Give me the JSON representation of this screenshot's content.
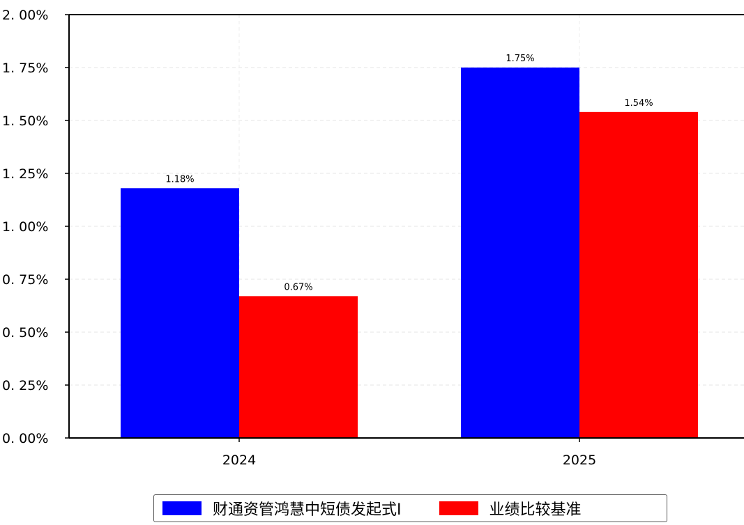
{
  "chart_data": {
    "type": "bar",
    "categories": [
      "2024",
      "2025"
    ],
    "series": [
      {
        "name": "财通资管鸿慧中短债发起式I",
        "values": [
          1.18,
          1.75
        ],
        "labels": [
          "1.18%",
          "1.75%"
        ],
        "color": "#0000ff"
      },
      {
        "name": "业绩比较基准",
        "values": [
          0.67,
          1.54
        ],
        "labels": [
          "0.67%",
          "1.54%"
        ],
        "color": "#ff0000"
      }
    ],
    "ylim": [
      0,
      2.0
    ],
    "yticks": [
      0,
      0.25,
      0.5,
      0.75,
      1.0,
      1.25,
      1.5,
      1.75,
      2.0
    ],
    "ytick_labels": [
      "0. 00%",
      "0. 25%",
      "0. 50%",
      "0. 75%",
      "1. 00%",
      "1. 25%",
      "1. 50%",
      "1. 75%",
      "2. 00%"
    ],
    "grid": true,
    "legend_position": "bottom-center",
    "title": "",
    "xlabel": "",
    "ylabel": ""
  }
}
